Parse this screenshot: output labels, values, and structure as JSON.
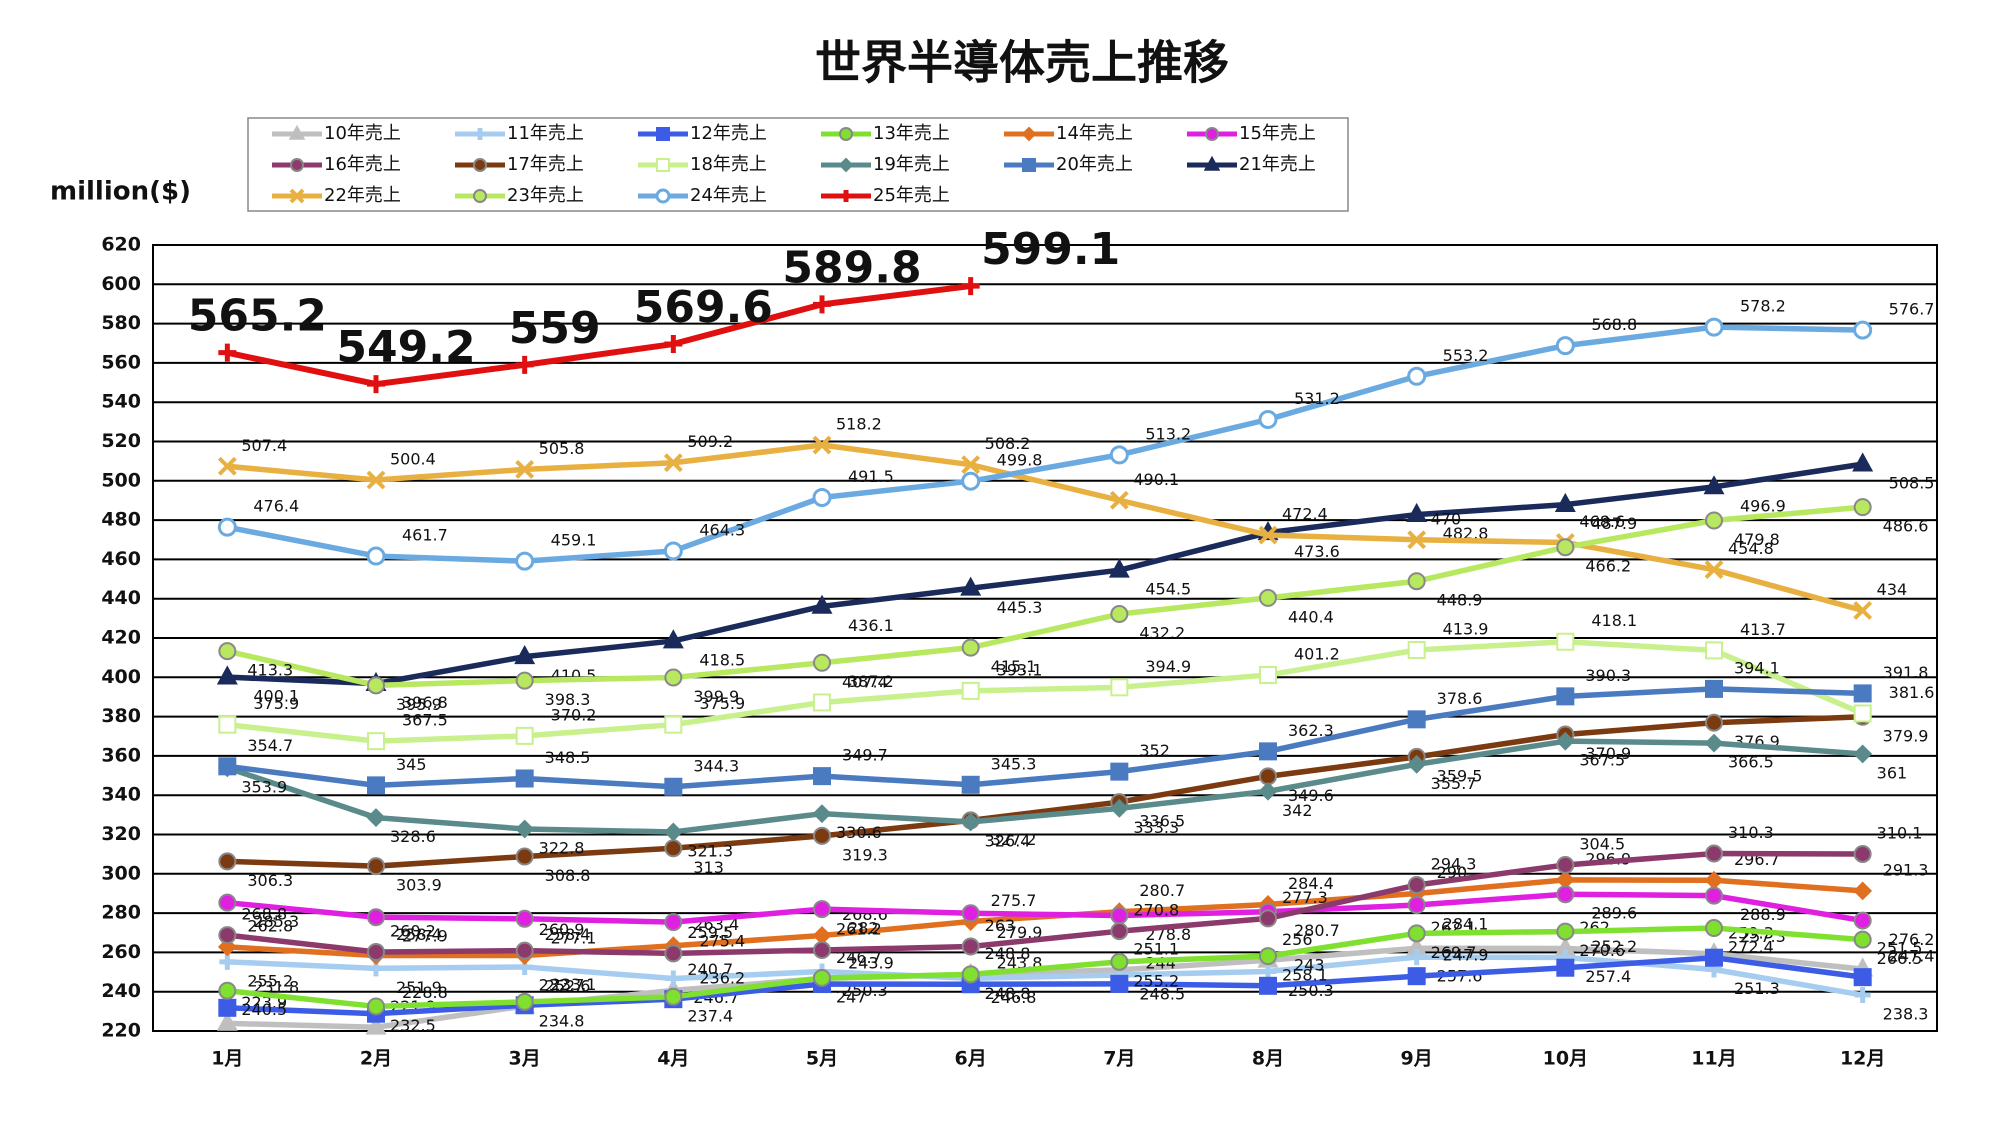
{
  "chart_data": {
    "type": "line",
    "title": "世界半導体売上推移",
    "y_label": "million($)",
    "categories": [
      "1月",
      "2月",
      "3月",
      "4月",
      "5月",
      "6月",
      "7月",
      "8月",
      "9月",
      "10月",
      "11月",
      "12月"
    ],
    "ylim": [
      220,
      620
    ],
    "yticks": [
      220,
      240,
      260,
      280,
      300,
      320,
      340,
      360,
      380,
      400,
      420,
      440,
      460,
      480,
      500,
      520,
      540,
      560,
      580,
      600,
      620
    ],
    "grid": true,
    "series": [
      {
        "name": "10年売上",
        "color": "#bfbfbf",
        "marker": "triangle",
        "values": [
          223.9,
          221.9,
          232.7,
          240.7,
          246.7,
          248.8,
          251.1,
          256,
          262.1,
          262,
          259.3,
          251.5
        ]
      },
      {
        "name": "11年売上",
        "color": "#a6cdf0",
        "marker": "plus",
        "values": [
          255.2,
          251.9,
          252.6,
          246.7,
          250.3,
          246.8,
          248.5,
          250.3,
          257.6,
          257.4,
          251.3,
          238.3
        ]
      },
      {
        "name": "12年売上",
        "color": "#3c5ce6",
        "marker": "square",
        "values": [
          231.8,
          228.8,
          233.1,
          236.2,
          243.9,
          243.8,
          244,
          243,
          247.9,
          252.2,
          257.3,
          247.4
        ]
      },
      {
        "name": "13年売上",
        "color": "#7fe030",
        "marker": "circle",
        "values": [
          240.5,
          232.5,
          234.8,
          237.4,
          247,
          248.8,
          255.2,
          258.1,
          269.7,
          270.6,
          272.4,
          266.5
        ]
      },
      {
        "name": "14年売上",
        "color": "#e07020",
        "marker": "diamond",
        "values": [
          262.8,
          258.4,
          258.4,
          263.4,
          268.6,
          275.7,
          280.7,
          284.4,
          290,
          296.9,
          296.7,
          291.3
        ]
      },
      {
        "name": "15年売上",
        "color": "#e020e0",
        "marker": "circle",
        "values": [
          285.3,
          277.9,
          277.1,
          275.4,
          282,
          279.9,
          278.8,
          280.7,
          284.1,
          289.6,
          288.9,
          276.2
        ]
      },
      {
        "name": "16年売上",
        "color": "#8b3a6b",
        "marker": "circle",
        "values": [
          268.8,
          260.2,
          260.9,
          259.5,
          261.2,
          263,
          270.8,
          277.3,
          294.3,
          304.5,
          310.3,
          310.1
        ]
      },
      {
        "name": "17年売上",
        "color": "#7b3a10",
        "marker": "circle",
        "values": [
          306.3,
          303.9,
          308.8,
          313,
          319.3,
          327.2,
          336.5,
          349.6,
          359.5,
          370.9,
          376.9,
          379.9
        ]
      },
      {
        "name": "18年売上",
        "color": "#c8f08c",
        "marker": "square-open",
        "values": [
          375.9,
          367.5,
          370.2,
          375.9,
          387.2,
          393.1,
          394.9,
          401.2,
          413.9,
          418.1,
          413.7,
          381.6
        ]
      },
      {
        "name": "19年売上",
        "color": "#5b8a8a",
        "marker": "diamond",
        "values": [
          353.9,
          328.6,
          322.8,
          321.3,
          330.6,
          326.4,
          333.3,
          342,
          355.7,
          367.5,
          366.5,
          361
        ]
      },
      {
        "name": "20年売上",
        "color": "#4a7ac0",
        "marker": "square",
        "values": [
          354.7,
          345,
          348.5,
          344.3,
          349.7,
          345.3,
          352,
          362.3,
          378.6,
          390.3,
          394.1,
          391.8
        ]
      },
      {
        "name": "21年売上",
        "color": "#1a2a5a",
        "marker": "triangle",
        "values": [
          400.1,
          396.8,
          410.5,
          418.5,
          436.1,
          445.3,
          454.5,
          473.6,
          482.8,
          487.9,
          496.9,
          508.5
        ]
      },
      {
        "name": "22年売上",
        "color": "#e8b040",
        "marker": "x",
        "values": [
          507.4,
          500.4,
          505.8,
          509.2,
          518.2,
          508.2,
          490.1,
          472.4,
          470,
          468.6,
          454.8,
          434
        ]
      },
      {
        "name": "23年売上",
        "color": "#b8e860",
        "marker": "circle",
        "values": [
          413.3,
          395.9,
          398.3,
          399.9,
          407.4,
          415.1,
          432.2,
          440.4,
          448.9,
          466.2,
          479.8,
          486.6
        ]
      },
      {
        "name": "24年売上",
        "color": "#6aaae0",
        "marker": "circle-open",
        "values": [
          476.4,
          461.7,
          459.1,
          464.3,
          491.5,
          499.8,
          513.2,
          531.2,
          553.2,
          568.8,
          578.2,
          576.7
        ]
      },
      {
        "name": "25年売上",
        "color": "#e01010",
        "marker": "plus",
        "values": [
          565.2,
          549.2,
          559,
          569.6,
          589.8,
          599.1,
          null,
          null,
          null,
          null,
          null,
          null
        ]
      }
    ]
  }
}
